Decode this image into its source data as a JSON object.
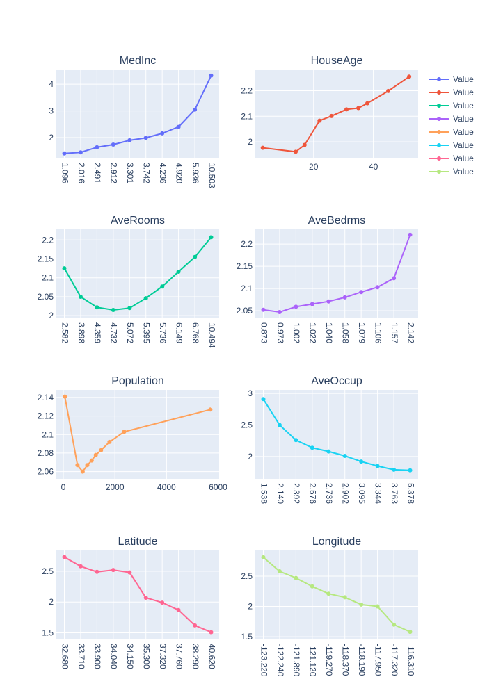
{
  "chart_data": [
    {
      "type": "line",
      "title": "MedInc",
      "color": "#636efa",
      "xscale": "category",
      "x": [
        "1.096",
        "2.016",
        "2.491",
        "2.912",
        "3.301",
        "3.742",
        "4.236",
        "4.920",
        "5.936",
        "10.503"
      ],
      "y": [
        1.41,
        1.45,
        1.64,
        1.74,
        1.9,
        1.99,
        2.16,
        2.4,
        3.05,
        4.32
      ],
      "ylim": [
        1.22,
        4.55
      ],
      "yticks": [
        2,
        3,
        4
      ],
      "series": [
        {
          "name": "Value"
        }
      ]
    },
    {
      "type": "line",
      "title": "HouseAge",
      "color": "#EF553B",
      "xscale": "linear",
      "x": [
        3,
        14,
        17,
        22,
        26,
        31,
        35,
        38,
        45,
        52
      ],
      "y": [
        1.977,
        1.961,
        1.988,
        2.083,
        2.101,
        2.127,
        2.132,
        2.151,
        2.199,
        2.255
      ],
      "xlim": [
        0.5,
        55
      ],
      "xticks": [
        20,
        40
      ],
      "ylim": [
        1.935,
        2.283
      ],
      "yticks": [
        2,
        2.1,
        2.2
      ],
      "series": [
        {
          "name": "Value"
        }
      ]
    },
    {
      "type": "line",
      "title": "AveRooms",
      "color": "#00cc96",
      "xscale": "category",
      "x": [
        "2.582",
        "3.898",
        "4.359",
        "4.732",
        "5.072",
        "5.395",
        "5.736",
        "6.149",
        "6.768",
        "10.494"
      ],
      "y": [
        2.125,
        2.05,
        2.022,
        2.015,
        2.02,
        2.046,
        2.077,
        2.116,
        2.155,
        2.207
      ],
      "ylim": [
        1.993,
        2.228
      ],
      "yticks": [
        2,
        2.05,
        2.1,
        2.15,
        2.2
      ],
      "series": [
        {
          "name": "Value"
        }
      ]
    },
    {
      "type": "line",
      "title": "AveBedrms",
      "color": "#ab63fa",
      "xscale": "category",
      "x": [
        "0.873",
        "0.973",
        "1.002",
        "1.022",
        "1.040",
        "1.058",
        "1.079",
        "1.106",
        "1.157",
        "2.142"
      ],
      "y": [
        2.052,
        2.047,
        2.059,
        2.065,
        2.071,
        2.08,
        2.092,
        2.103,
        2.123,
        2.221
      ],
      "ylim": [
        2.033,
        2.233
      ],
      "yticks": [
        2.05,
        2.1,
        2.15,
        2.2
      ],
      "series": [
        {
          "name": "Value"
        }
      ]
    },
    {
      "type": "line",
      "title": "Population",
      "color": "#FFA15A",
      "xscale": "linear",
      "x": [
        60,
        550,
        750,
        930,
        1100,
        1260,
        1460,
        1790,
        2360,
        5700
      ],
      "y": [
        2.141,
        2.067,
        2.06,
        2.067,
        2.072,
        2.078,
        2.083,
        2.092,
        2.103,
        2.127
      ],
      "xlim": [
        -270,
        6040
      ],
      "xticks": [
        0,
        2000,
        4000,
        6000
      ],
      "ylim": [
        2.0522,
        2.1482
      ],
      "yticks": [
        2.06,
        2.08,
        2.1,
        2.12,
        2.14
      ],
      "series": [
        {
          "name": "Value"
        }
      ]
    },
    {
      "type": "line",
      "title": "AveOccup",
      "color": "#19d3f3",
      "xscale": "category",
      "x": [
        "1.538",
        "2.140",
        "2.392",
        "2.576",
        "2.736",
        "2.902",
        "3.095",
        "3.344",
        "3.763",
        "5.378"
      ],
      "y": [
        2.91,
        2.5,
        2.26,
        2.14,
        2.08,
        2.01,
        1.92,
        1.85,
        1.79,
        1.78
      ],
      "ylim": [
        1.646,
        3.057
      ],
      "yticks": [
        2,
        2.5,
        3
      ],
      "series": [
        {
          "name": "Value"
        }
      ]
    },
    {
      "type": "line",
      "title": "Latitude",
      "color": "#FF6692",
      "xscale": "category",
      "x": [
        "32.680",
        "33.710",
        "33.900",
        "34.040",
        "34.150",
        "35.300",
        "37.320",
        "37.760",
        "38.290",
        "40.620"
      ],
      "y": [
        2.73,
        2.58,
        2.49,
        2.52,
        2.48,
        2.07,
        1.99,
        1.87,
        1.62,
        1.51
      ],
      "ylim": [
        1.393,
        2.837
      ],
      "yticks": [
        1.5,
        2,
        2.5
      ],
      "series": [
        {
          "name": "Value"
        }
      ]
    },
    {
      "type": "line",
      "title": "Longitude",
      "color": "#B6E880",
      "xscale": "category",
      "x": [
        "-123.220",
        "-122.240",
        "-121.890",
        "-121.120",
        "-119.270",
        "-118.370",
        "-118.190",
        "-117.950",
        "-117.320",
        "-116.310"
      ],
      "y": [
        2.81,
        2.58,
        2.47,
        2.33,
        2.21,
        2.15,
        2.03,
        2.0,
        1.7,
        1.58
      ],
      "ylim": [
        1.455,
        2.924
      ],
      "yticks": [
        1.5,
        2,
        2.5
      ],
      "series": [
        {
          "name": "Value"
        }
      ]
    }
  ],
  "legend": {
    "placement": "right",
    "entries": [
      {
        "name": "Value",
        "color": "#636efa"
      },
      {
        "name": "Value",
        "color": "#EF553B"
      },
      {
        "name": "Value",
        "color": "#00cc96"
      },
      {
        "name": "Value",
        "color": "#ab63fa"
      },
      {
        "name": "Value",
        "color": "#FFA15A"
      },
      {
        "name": "Value",
        "color": "#19d3f3"
      },
      {
        "name": "Value",
        "color": "#FF6692"
      },
      {
        "name": "Value",
        "color": "#B6E880"
      }
    ]
  }
}
